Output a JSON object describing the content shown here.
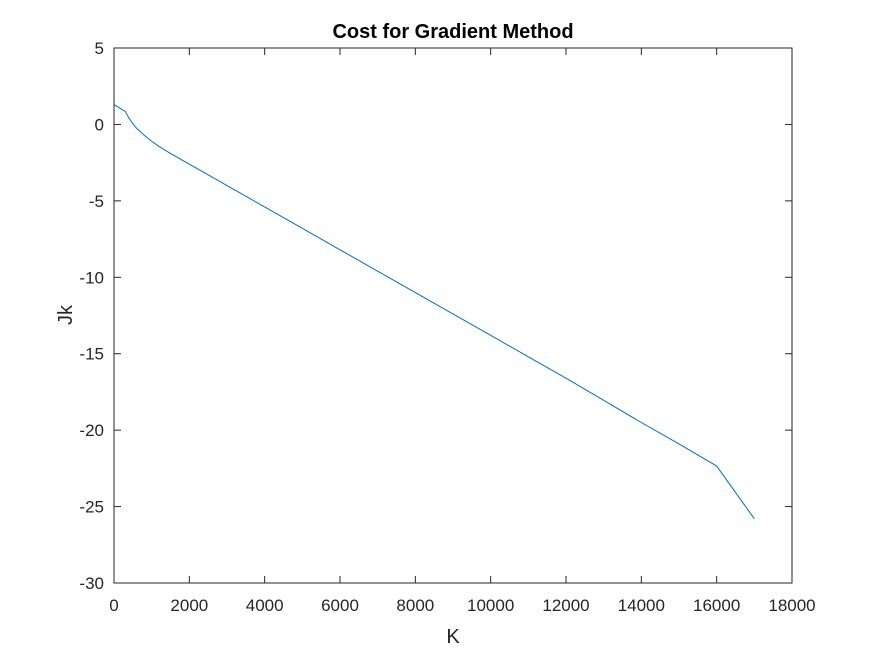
{
  "chart_data": {
    "type": "line",
    "title": "Cost for Gradient Method",
    "xlabel": "K",
    "ylabel": "Jk",
    "xlim": [
      0,
      18000
    ],
    "ylim": [
      -30,
      5
    ],
    "xticks": [
      0,
      2000,
      4000,
      6000,
      8000,
      10000,
      12000,
      14000,
      16000,
      18000
    ],
    "yticks": [
      -30,
      -25,
      -20,
      -15,
      -10,
      -5,
      0,
      5
    ],
    "grid": false,
    "legend": "none",
    "line_color": "#0072BD",
    "series": [
      {
        "x": [
          0,
          100,
          200,
          300,
          400,
          500,
          600,
          800,
          1000,
          1200,
          1500,
          2000,
          2500,
          3000,
          4000,
          5000,
          6000,
          7000,
          8000,
          9000,
          10000,
          11000,
          12000,
          13000,
          14000,
          15000,
          16000,
          17000
        ],
        "values": [
          1.3,
          1.15,
          1.0,
          0.85,
          0.4,
          0.05,
          -0.25,
          -0.7,
          -1.1,
          -1.45,
          -1.9,
          -2.6,
          -3.3,
          -4.0,
          -5.4,
          -6.8,
          -8.2,
          -9.6,
          -11.0,
          -12.4,
          -13.8,
          -15.2,
          -16.6,
          -18.05,
          -19.5,
          -20.9,
          -22.35,
          -25.8
        ]
      }
    ]
  }
}
